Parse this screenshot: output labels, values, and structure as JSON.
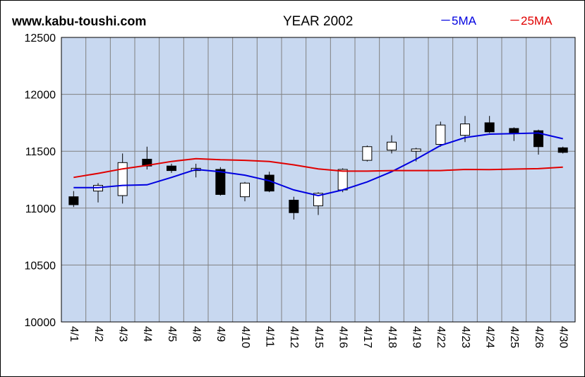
{
  "header": {
    "site": "www.kabu-toushi.com",
    "title": "YEAR 2002"
  },
  "legend": [
    {
      "label": "－5MA",
      "color": "#0000e0"
    },
    {
      "label": "－25MA",
      "color": "#e00000"
    }
  ],
  "colors": {
    "plot_bg": "#c8d8f0",
    "grid": "#808080",
    "up_candle": "#ffffff",
    "down_candle": "#000000"
  },
  "chart_data": {
    "type": "candlestick",
    "ylim": [
      10000,
      12500
    ],
    "yticks": [
      "12500",
      "12000",
      "11500",
      "11000",
      "10500",
      "10000"
    ],
    "grid": true,
    "categories": [
      "4/1",
      "4/2",
      "4/3",
      "4/4",
      "4/5",
      "4/8",
      "4/9",
      "4/10",
      "4/11",
      "4/12",
      "4/15",
      "4/16",
      "4/17",
      "4/18",
      "4/19",
      "4/22",
      "4/23",
      "4/24",
      "4/25",
      "4/26",
      "4/30"
    ],
    "ohlc": [
      {
        "open": 11100,
        "high": 11150,
        "low": 11010,
        "close": 11030
      },
      {
        "open": 11150,
        "high": 11220,
        "low": 11050,
        "close": 11200
      },
      {
        "open": 11110,
        "high": 11480,
        "low": 11040,
        "close": 11400
      },
      {
        "open": 11430,
        "high": 11540,
        "low": 11340,
        "close": 11370
      },
      {
        "open": 11370,
        "high": 11390,
        "low": 11310,
        "close": 11330
      },
      {
        "open": 11330,
        "high": 11390,
        "low": 11270,
        "close": 11350
      },
      {
        "open": 11340,
        "high": 11360,
        "low": 11110,
        "close": 11120
      },
      {
        "open": 11100,
        "high": 11230,
        "low": 11060,
        "close": 11220
      },
      {
        "open": 11290,
        "high": 11320,
        "low": 11140,
        "close": 11150
      },
      {
        "open": 11070,
        "high": 11100,
        "low": 10900,
        "close": 10960
      },
      {
        "open": 11020,
        "high": 11140,
        "low": 10940,
        "close": 11130
      },
      {
        "open": 11160,
        "high": 11350,
        "low": 11140,
        "close": 11340
      },
      {
        "open": 11420,
        "high": 11550,
        "low": 11410,
        "close": 11540
      },
      {
        "open": 11510,
        "high": 11640,
        "low": 11480,
        "close": 11580
      },
      {
        "open": 11500,
        "high": 11530,
        "low": 11410,
        "close": 11520
      },
      {
        "open": 11560,
        "high": 11760,
        "low": 11540,
        "close": 11730
      },
      {
        "open": 11640,
        "high": 11810,
        "low": 11580,
        "close": 11740
      },
      {
        "open": 11750,
        "high": 11810,
        "low": 11660,
        "close": 11670
      },
      {
        "open": 11700,
        "high": 11710,
        "low": 11590,
        "close": 11660
      },
      {
        "open": 11680,
        "high": 11690,
        "low": 11470,
        "close": 11540
      },
      {
        "open": 11530,
        "high": 11540,
        "low": 11480,
        "close": 11490
      }
    ],
    "series": [
      {
        "name": "5MA",
        "color": "#0000e0",
        "values": [
          11180,
          11180,
          11200,
          11205,
          11270,
          11340,
          11320,
          11290,
          11240,
          11160,
          11110,
          11160,
          11230,
          11320,
          11430,
          11550,
          11620,
          11650,
          11655,
          11660,
          11610
        ]
      },
      {
        "name": "25MA",
        "color": "#e00000",
        "values": [
          11270,
          11305,
          11345,
          11375,
          11410,
          11435,
          11425,
          11420,
          11410,
          11380,
          11345,
          11325,
          11325,
          11330,
          11330,
          11330,
          11340,
          11338,
          11343,
          11347,
          11360
        ]
      }
    ]
  }
}
